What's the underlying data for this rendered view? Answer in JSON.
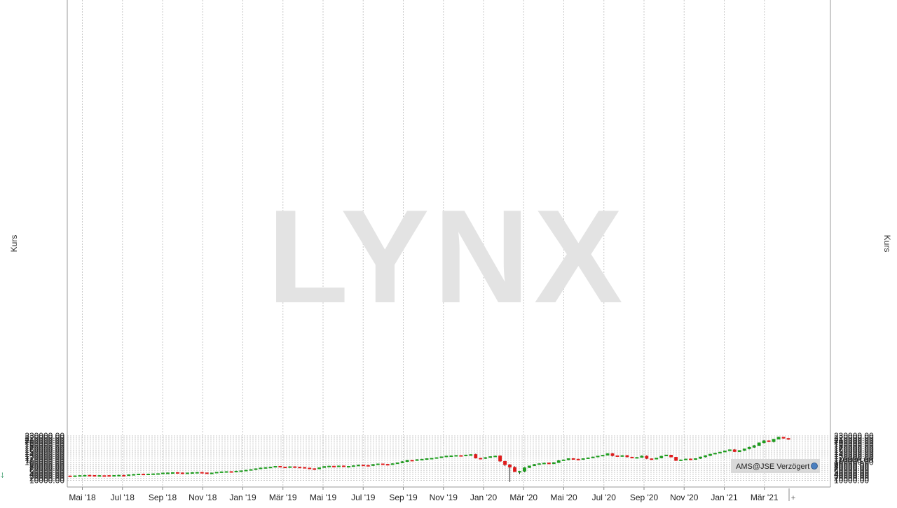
{
  "chart_data": {
    "type": "candlestick",
    "ylabel_left": "Kurs",
    "ylabel_right": "Kurs",
    "watermark": "LYNX",
    "source_label": "AMS@JSE Verzögert",
    "ylim": [
      0,
      235000
    ],
    "y_ticks": [
      "10000.00",
      "20000.00",
      "30000.00",
      "40000.00",
      "50000.00",
      "60000.00",
      "70000.00",
      "80000.00",
      "90000.00",
      "100000.00",
      "110000.00",
      "120000.00",
      "130000.00",
      "140000.00",
      "150000.00",
      "160000.00",
      "170000.00",
      "180000.00",
      "190000.00",
      "200000.00",
      "210000.00",
      "220000.00",
      "230000.00"
    ],
    "x_ticks": [
      "Mai '18",
      "Jul '18",
      "Sep '18",
      "Nov '18",
      "Jan '19",
      "Mär '19",
      "Mai '19",
      "Jul '19",
      "Sep '19",
      "Nov '19",
      "Jan '20",
      "Mär '20",
      "Mai '20",
      "Jul '20",
      "Sep '20",
      "Nov '20",
      "Jan '21",
      "Mär '21"
    ],
    "colors": {
      "up": "#1e9e1e",
      "down": "#e01b1b",
      "grid": "#c8c8c8",
      "watermark": "#e3e3e3"
    },
    "weekly_closes": [
      31000,
      33000,
      34500,
      35500,
      35000,
      34000,
      34500,
      34000,
      33500,
      35000,
      36000,
      35500,
      38000,
      40000,
      42000,
      41500,
      42000,
      43000,
      44000,
      47000,
      47500,
      49000,
      48000,
      46000,
      47500,
      49000,
      50000,
      48000,
      46000,
      47000,
      51000,
      53000,
      54000,
      53500,
      56000,
      58000,
      61000,
      64000,
      68000,
      72000,
      74000,
      76000,
      80000,
      77000,
      75000,
      78000,
      76000,
      74000,
      72000,
      68000,
      67000,
      73000,
      79000,
      81000,
      80000,
      82000,
      79000,
      80000,
      83000,
      86000,
      84000,
      83000,
      89000,
      92000,
      90000,
      88000,
      93000,
      97000,
      103000,
      110000,
      108000,
      113000,
      115000,
      118000,
      120000,
      123000,
      127000,
      131000,
      132000,
      134000,
      133000,
      136000,
      138000,
      120000,
      118000,
      123000,
      128000,
      131000,
      105000,
      87000,
      75000,
      53000,
      55000,
      73000,
      82000,
      89000,
      93000,
      96000,
      92000,
      98000,
      108000,
      112000,
      118000,
      116000,
      114000,
      118000,
      122000,
      126000,
      131000,
      135000,
      143000,
      132000,
      128000,
      133000,
      126000,
      122000,
      124000,
      131000,
      118000,
      115000,
      121000,
      130000,
      136000,
      125000,
      108000,
      112000,
      116000,
      114000,
      118000,
      126000,
      133000,
      140000,
      145000,
      150000,
      156000,
      162000,
      152000,
      158000,
      166000,
      174000,
      182000,
      196000,
      206000,
      201000,
      214000,
      224000,
      218000,
      217000
    ]
  }
}
